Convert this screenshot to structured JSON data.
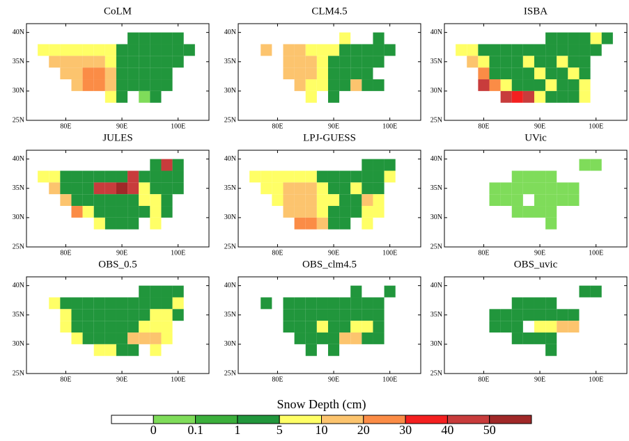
{
  "chart_data": {
    "type": "map",
    "xlim": [
      73,
      105.5
    ],
    "ylim": [
      25,
      41.5
    ],
    "xticks": [
      {
        "value": 80,
        "label": "80E"
      },
      {
        "value": 90,
        "label": "90E"
      },
      {
        "value": 100,
        "label": "100E"
      }
    ],
    "yticks": [
      {
        "value": 25,
        "label": "25N"
      },
      {
        "value": 30,
        "label": "30N"
      },
      {
        "value": 35,
        "label": "35N"
      },
      {
        "value": 40,
        "label": "40N"
      }
    ],
    "lon_edges": [
      75,
      77,
      79,
      81,
      83,
      85,
      87,
      89,
      91,
      93,
      95,
      97,
      99,
      101,
      103
    ],
    "lat_edges": [
      40,
      38,
      36,
      34,
      32,
      30,
      28
    ],
    "colorbar": {
      "title": "Snow Depth (cm)",
      "labels": [
        0,
        0.1,
        1,
        5,
        10,
        20,
        30,
        40,
        50
      ],
      "colors": [
        "#ffffff",
        "#7fdc5a",
        "#3caf3c",
        "#21963c",
        "#ffff66",
        "#fcc46e",
        "#fb8c46",
        "#f42020",
        "#c83c3c",
        "#a02828"
      ]
    },
    "panels": [
      {
        "title": "CoLM",
        "grid": [
          [
            null,
            null,
            null,
            null,
            null,
            null,
            null,
            null,
            3,
            3,
            3,
            3,
            3,
            null
          ],
          [
            4,
            4,
            4,
            4,
            4,
            4,
            4,
            3,
            3,
            3,
            3,
            3,
            3,
            3
          ],
          [
            null,
            5,
            5,
            5,
            5,
            5,
            4,
            3,
            3,
            3,
            3,
            3,
            3,
            null
          ],
          [
            null,
            null,
            5,
            5,
            6,
            6,
            5,
            3,
            3,
            3,
            3,
            3,
            null,
            null
          ],
          [
            null,
            null,
            null,
            5,
            6,
            6,
            5,
            3,
            3,
            3,
            3,
            3,
            null,
            null
          ],
          [
            null,
            null,
            null,
            null,
            null,
            null,
            4,
            3,
            null,
            1,
            3,
            null,
            null,
            null
          ]
        ]
      },
      {
        "title": "CLM4.5",
        "grid": [
          [
            null,
            null,
            null,
            null,
            null,
            null,
            null,
            null,
            4,
            null,
            null,
            3,
            null,
            null
          ],
          [
            null,
            5,
            null,
            5,
            5,
            4,
            4,
            4,
            3,
            3,
            3,
            3,
            3,
            null
          ],
          [
            null,
            null,
            null,
            5,
            5,
            5,
            4,
            3,
            3,
            3,
            3,
            3,
            null,
            null
          ],
          [
            null,
            null,
            null,
            5,
            5,
            5,
            4,
            3,
            3,
            3,
            3,
            null,
            null,
            null
          ],
          [
            null,
            null,
            null,
            null,
            5,
            4,
            4,
            3,
            3,
            5,
            3,
            3,
            null,
            null
          ],
          [
            null,
            null,
            null,
            null,
            null,
            4,
            null,
            3,
            null,
            null,
            null,
            null,
            null,
            null
          ]
        ]
      },
      {
        "title": "ISBA",
        "grid": [
          [
            null,
            null,
            null,
            null,
            null,
            null,
            null,
            null,
            3,
            3,
            3,
            3,
            4,
            3
          ],
          [
            4,
            4,
            3,
            3,
            3,
            3,
            3,
            3,
            3,
            3,
            3,
            3,
            3,
            null
          ],
          [
            null,
            5,
            4,
            3,
            3,
            3,
            4,
            3,
            3,
            4,
            3,
            3,
            null,
            null
          ],
          [
            null,
            null,
            6,
            3,
            3,
            3,
            3,
            4,
            3,
            3,
            4,
            3,
            null,
            null
          ],
          [
            null,
            null,
            8,
            6,
            4,
            3,
            3,
            3,
            4,
            3,
            3,
            4,
            null,
            null
          ],
          [
            null,
            null,
            null,
            null,
            8,
            7,
            8,
            4,
            3,
            3,
            3,
            4,
            null,
            null
          ]
        ]
      },
      {
        "title": "JULES",
        "grid": [
          [
            null,
            null,
            null,
            null,
            null,
            null,
            null,
            null,
            null,
            null,
            3,
            8,
            3,
            null
          ],
          [
            4,
            4,
            3,
            3,
            3,
            3,
            3,
            3,
            8,
            3,
            3,
            3,
            3,
            null
          ],
          [
            null,
            5,
            3,
            3,
            3,
            8,
            8,
            9,
            8,
            4,
            3,
            3,
            3,
            null
          ],
          [
            null,
            null,
            5,
            3,
            3,
            3,
            3,
            3,
            3,
            4,
            4,
            3,
            null,
            null
          ],
          [
            null,
            null,
            null,
            6,
            4,
            3,
            3,
            3,
            3,
            3,
            4,
            3,
            null,
            null
          ],
          [
            null,
            null,
            null,
            null,
            null,
            4,
            3,
            3,
            3,
            null,
            4,
            null,
            null,
            null
          ]
        ]
      },
      {
        "title": "LPJ-GUESS",
        "grid": [
          [
            null,
            null,
            null,
            null,
            null,
            null,
            null,
            null,
            null,
            null,
            3,
            3,
            3,
            null
          ],
          [
            4,
            4,
            4,
            4,
            4,
            4,
            3,
            3,
            3,
            3,
            3,
            3,
            4,
            null
          ],
          [
            null,
            4,
            4,
            5,
            5,
            5,
            4,
            3,
            3,
            4,
            3,
            3,
            null,
            null
          ],
          [
            null,
            null,
            4,
            5,
            5,
            5,
            4,
            4,
            3,
            3,
            5,
            4,
            null,
            null
          ],
          [
            null,
            null,
            null,
            5,
            5,
            5,
            4,
            3,
            3,
            3,
            4,
            4,
            null,
            null
          ],
          [
            null,
            null,
            null,
            null,
            6,
            6,
            5,
            3,
            3,
            null,
            4,
            null,
            null,
            null
          ]
        ]
      },
      {
        "title": "UVic",
        "grid": [
          [
            null,
            null,
            null,
            null,
            null,
            null,
            null,
            null,
            null,
            null,
            null,
            1,
            1,
            null
          ],
          [
            null,
            null,
            null,
            null,
            null,
            1,
            1,
            1,
            1,
            null,
            null,
            null,
            null,
            null
          ],
          [
            null,
            null,
            null,
            1,
            1,
            1,
            1,
            1,
            1,
            1,
            1,
            null,
            null,
            null
          ],
          [
            null,
            null,
            null,
            1,
            1,
            1,
            null,
            1,
            1,
            1,
            1,
            null,
            null,
            null
          ],
          [
            null,
            null,
            null,
            null,
            null,
            1,
            1,
            1,
            1,
            null,
            null,
            null,
            null,
            null
          ],
          [
            null,
            null,
            null,
            null,
            null,
            null,
            null,
            null,
            1,
            null,
            null,
            null,
            null,
            null
          ]
        ]
      },
      {
        "title": "OBS_0.5",
        "grid": [
          [
            null,
            null,
            null,
            null,
            null,
            null,
            null,
            null,
            null,
            3,
            3,
            3,
            3,
            null
          ],
          [
            null,
            4,
            3,
            3,
            3,
            3,
            3,
            3,
            3,
            3,
            3,
            3,
            4,
            null
          ],
          [
            null,
            null,
            4,
            3,
            3,
            3,
            3,
            3,
            3,
            3,
            4,
            4,
            3,
            null
          ],
          [
            null,
            null,
            4,
            3,
            3,
            3,
            3,
            3,
            3,
            4,
            4,
            4,
            null,
            null
          ],
          [
            null,
            null,
            null,
            4,
            3,
            3,
            3,
            3,
            5,
            5,
            5,
            4,
            null,
            null
          ],
          [
            null,
            null,
            null,
            null,
            null,
            4,
            4,
            3,
            3,
            null,
            4,
            null,
            null,
            null
          ]
        ]
      },
      {
        "title": "OBS_clm4.5",
        "grid": [
          [
            null,
            null,
            null,
            null,
            null,
            null,
            null,
            null,
            null,
            3,
            null,
            null,
            3,
            null
          ],
          [
            null,
            3,
            null,
            3,
            3,
            3,
            3,
            3,
            3,
            3,
            3,
            3,
            null,
            null
          ],
          [
            null,
            null,
            null,
            3,
            3,
            3,
            3,
            3,
            3,
            3,
            3,
            3,
            null,
            null
          ],
          [
            null,
            null,
            null,
            3,
            3,
            3,
            4,
            3,
            3,
            4,
            4,
            3,
            null,
            null
          ],
          [
            null,
            null,
            null,
            null,
            3,
            3,
            3,
            3,
            5,
            5,
            3,
            3,
            null,
            null
          ],
          [
            null,
            null,
            null,
            null,
            null,
            3,
            null,
            3,
            null,
            null,
            null,
            null,
            null,
            null
          ]
        ]
      },
      {
        "title": "OBS_uvic",
        "grid": [
          [
            null,
            null,
            null,
            null,
            null,
            null,
            null,
            null,
            null,
            null,
            null,
            3,
            3,
            null
          ],
          [
            null,
            null,
            null,
            null,
            null,
            3,
            3,
            3,
            3,
            null,
            null,
            null,
            null,
            null
          ],
          [
            null,
            null,
            null,
            3,
            3,
            3,
            3,
            3,
            3,
            3,
            3,
            null,
            null,
            null
          ],
          [
            null,
            null,
            null,
            3,
            3,
            3,
            null,
            4,
            4,
            5,
            5,
            null,
            null,
            null
          ],
          [
            null,
            null,
            null,
            null,
            null,
            3,
            3,
            3,
            3,
            null,
            null,
            null,
            null,
            null
          ],
          [
            null,
            null,
            null,
            null,
            null,
            null,
            null,
            null,
            3,
            null,
            null,
            null,
            null,
            null
          ]
        ]
      }
    ]
  }
}
